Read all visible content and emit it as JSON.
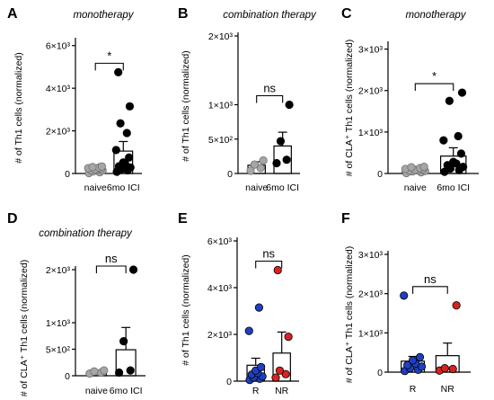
{
  "chart_data": [
    {
      "letter": "A",
      "type": "bar",
      "title": "monotherapy",
      "ylabel": "# of Th1 cells (normalized)",
      "categories": [
        "naive",
        "6mo ICI"
      ],
      "yticks": [
        "0",
        "2×10³",
        "4×10³",
        "6×10³"
      ],
      "ytick_values": [
        0,
        2000,
        4000,
        6000
      ],
      "ylim": [
        0,
        6200
      ],
      "groups": [
        {
          "name": "naive",
          "mean": 200,
          "sem": 60,
          "color": "#a6a6a6",
          "points": [
            20,
            60,
            100,
            140,
            160,
            180,
            200,
            220,
            250,
            280,
            300,
            330
          ]
        },
        {
          "name": "6mo ICI",
          "mean": 1050,
          "sem": 450,
          "color": "#000000",
          "points": [
            80,
            150,
            200,
            280,
            340,
            420,
            520,
            750,
            1100,
            1900,
            2350,
            3150,
            4750
          ]
        }
      ],
      "comparison": "*"
    },
    {
      "letter": "B",
      "type": "bar",
      "title": "combination therapy",
      "ylabel": "# of Th1 cells (normalized)",
      "categories": [
        "naive",
        "6mo ICI"
      ],
      "yticks": [
        "0",
        "5×10²",
        "1×10³",
        "2×10³"
      ],
      "ytick_values": [
        0,
        500,
        1000,
        2000
      ],
      "ylim": [
        0,
        2000
      ],
      "groups": [
        {
          "name": "naive",
          "mean": 120,
          "sem": 50,
          "color": "#a6a6a6",
          "points": [
            40,
            80,
            130,
            190
          ]
        },
        {
          "name": "6mo ICI",
          "mean": 400,
          "sem": 200,
          "color": "#000000",
          "points": [
            150,
            200,
            470,
            1000
          ]
        }
      ],
      "comparison": "ns"
    },
    {
      "letter": "C",
      "type": "bar",
      "title": "monotherapy",
      "ylabel": "# of CLA⁺ Th1 cells (normalized)",
      "categories": [
        "naive",
        "6mo ICI"
      ],
      "yticks": [
        "0",
        "1×10³",
        "2×10³",
        "3×10³"
      ],
      "ytick_values": [
        0,
        1000,
        2000,
        3000
      ],
      "ylim": [
        0,
        3100
      ],
      "groups": [
        {
          "name": "naive",
          "mean": 70,
          "sem": 25,
          "color": "#a6a6a6",
          "points": [
            10,
            30,
            50,
            60,
            70,
            80,
            90,
            100,
            110,
            130,
            150,
            160
          ]
        },
        {
          "name": "6mo ICI",
          "mean": 420,
          "sem": 200,
          "color": "#000000",
          "points": [
            40,
            80,
            120,
            160,
            200,
            240,
            280,
            480,
            800,
            900,
            1750,
            1950
          ]
        }
      ],
      "comparison": "*"
    },
    {
      "letter": "D",
      "type": "bar",
      "title": "combination therapy",
      "ylabel": "# of CLA⁺ Th1 cells (normalized)",
      "categories": [
        "naive",
        "6mo ICI"
      ],
      "yticks": [
        "0",
        "5×10²",
        "1×10³",
        "2×10³"
      ],
      "ytick_values": [
        0,
        500,
        1000,
        2000
      ],
      "ylim": [
        0,
        2000
      ],
      "groups": [
        {
          "name": "naive",
          "mean": 70,
          "sem": 20,
          "color": "#a6a6a6",
          "points": [
            40,
            60,
            80,
            100
          ]
        },
        {
          "name": "6mo ICI",
          "mean": 490,
          "sem": 420,
          "color": "#000000",
          "points": [
            60,
            100,
            650,
            2000
          ]
        }
      ],
      "comparison": "ns"
    },
    {
      "letter": "E",
      "type": "bar",
      "title": "",
      "ylabel": "# of Th1 cells (normalized)",
      "categories": [
        "R",
        "NR"
      ],
      "yticks": [
        "0",
        "2×10³",
        "4×10³",
        "6×10³"
      ],
      "ytick_values": [
        0,
        2000,
        4000,
        6000
      ],
      "ylim": [
        0,
        6000
      ],
      "groups": [
        {
          "name": "R",
          "mean": 680,
          "sem": 300,
          "color": "#1f3fbf",
          "points": [
            50,
            100,
            150,
            200,
            280,
            350,
            450,
            600,
            2150,
            3150
          ]
        },
        {
          "name": "NR",
          "mean": 1200,
          "sem": 900,
          "color": "#d92121",
          "points": [
            150,
            300,
            450,
            1900,
            4750
          ]
        }
      ],
      "comparison": "ns"
    },
    {
      "letter": "F",
      "type": "bar",
      "title": "",
      "ylabel": "# of CLA⁺ Th1 cells (normalized)",
      "categories": [
        "R",
        "NR"
      ],
      "yticks": [
        "0",
        "1×10³",
        "2×10³",
        "3×10³"
      ],
      "ytick_values": [
        0,
        1000,
        2000,
        3000
      ],
      "ylim": [
        0,
        3000
      ],
      "groups": [
        {
          "name": "R",
          "mean": 280,
          "sem": 120,
          "color": "#1f3fbf",
          "points": [
            30,
            60,
            100,
            140,
            180,
            220,
            300,
            380,
            1950
          ]
        },
        {
          "name": "NR",
          "mean": 420,
          "sem": 320,
          "color": "#d92121",
          "points": [
            40,
            80,
            100,
            1700
          ]
        }
      ],
      "comparison": "ns"
    }
  ]
}
